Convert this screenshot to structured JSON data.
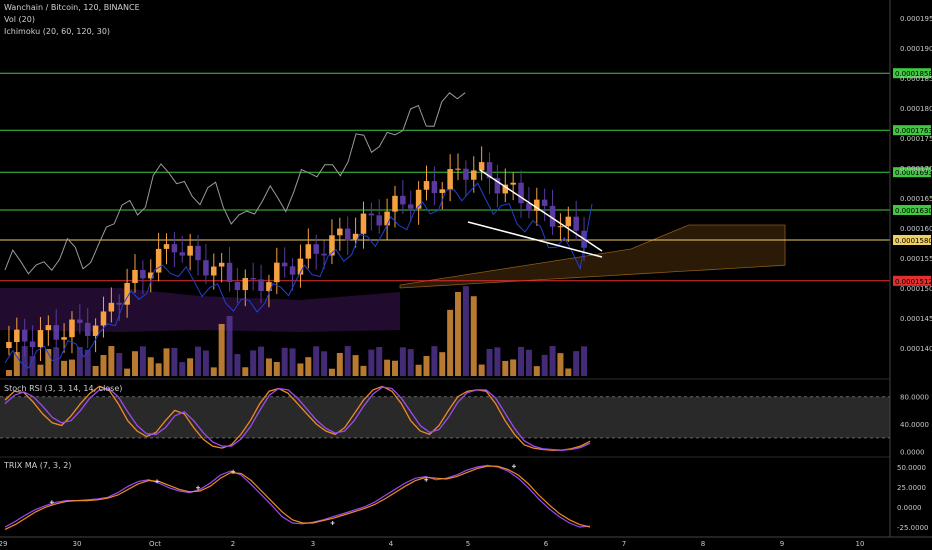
{
  "header": {
    "symbol_line": "Wanchain / Bitcoin, 120, BINANCE",
    "vol_label": "Vol (20)",
    "ichimoku_label": "Ichimoku (20, 60, 120, 30)"
  },
  "panes": {
    "stoch_label": "Stoch RSI (3, 3, 14, 14, close)",
    "trix_label": "TRIX MA (7, 3, 2)"
  },
  "colors": {
    "background": "#000000",
    "bull": "#f5a142",
    "bear": "#5b3a9e",
    "hline": "#3fc93f",
    "support": "#e23030",
    "current": "#f0d060",
    "cloud": "#7a4a10",
    "k_line": "#f08a24",
    "d_line": "#9a4cf0"
  },
  "chart_data": [
    {
      "type": "candlestick",
      "title": "Wanchain / Bitcoin, 120, BINANCE",
      "x_ticks": [
        "29",
        "30",
        "Oct",
        "2",
        "3",
        "4",
        "5",
        "6",
        "7",
        "8",
        "9",
        "10"
      ],
      "y_ticks": [
        "0.0001950",
        "0.0001900",
        "0.0001850",
        "0.0001800",
        "0.0001750",
        "0.0001700",
        "0.0001650",
        "0.0001600",
        "0.0001550",
        "0.0001500",
        "0.0001450",
        "0.0001400"
      ],
      "ylim": [
        0.000135,
        0.000198
      ],
      "horizontal_levels": [
        {
          "value": 0.0001858,
          "label": "0.0001858",
          "color": "#3fc93f"
        },
        {
          "value": 0.0001763,
          "label": "0.0001763",
          "color": "#3fc93f"
        },
        {
          "value": 0.0001693,
          "label": "0.0001693",
          "color": "#3fc93f"
        },
        {
          "value": 0.000163,
          "label": "0.0001630",
          "color": "#3fc93f"
        },
        {
          "value": 0.000158,
          "label": "0.0001580",
          "color": "#f0d060"
        },
        {
          "value": 0.0001512,
          "label": "0.0001512",
          "color": "#e23030"
        }
      ],
      "wedge": {
        "upper": [
          [
            "5 00:00",
            0.000171
          ],
          [
            "6 08:00",
            0.0001575
          ]
        ],
        "lower": [
          [
            "5 00:00",
            0.000161
          ],
          [
            "6 08:00",
            0.0001565
          ]
        ]
      },
      "candles_summary": {
        "start": 0.000143,
        "low": 0.0001405,
        "peak": 0.0001705,
        "end": 0.0001585
      },
      "volume_series": "Vol (20)"
    },
    {
      "type": "line",
      "title": "Stoch RSI (3, 3, 14, 14, close)",
      "y_ticks": [
        "80.0000",
        "40.0000",
        "0.0000"
      ],
      "ylim": [
        -5,
        100
      ],
      "band": [
        20,
        80
      ],
      "series": [
        {
          "name": "K",
          "values": [
            75,
            88,
            86,
            72,
            55,
            42,
            38,
            52,
            70,
            85,
            95,
            90,
            70,
            45,
            30,
            22,
            28,
            45,
            60,
            55,
            35,
            18,
            8,
            5,
            10,
            25,
            45,
            70,
            88,
            92,
            85,
            70,
            55,
            40,
            30,
            25,
            35,
            55,
            75,
            90,
            95,
            88,
            70,
            45,
            30,
            25,
            38,
            60,
            80,
            88,
            90,
            88,
            70,
            45,
            25,
            10,
            5,
            3,
            2,
            2,
            4,
            8,
            15
          ]
        },
        {
          "name": "D",
          "values": [
            70,
            82,
            87,
            80,
            66,
            50,
            42,
            45,
            60,
            78,
            90,
            92,
            80,
            58,
            38,
            26,
            25,
            35,
            52,
            58,
            45,
            28,
            14,
            8,
            8,
            18,
            36,
            60,
            82,
            92,
            90,
            78,
            62,
            46,
            34,
            27,
            30,
            45,
            66,
            84,
            94,
            92,
            78,
            58,
            38,
            28,
            32,
            50,
            72,
            86,
            90,
            90,
            78,
            56,
            34,
            16,
            8,
            4,
            3,
            2,
            3,
            6,
            12
          ]
        }
      ]
    },
    {
      "type": "line",
      "title": "TRIX MA (7, 3, 2)",
      "y_ticks": [
        "50.0000",
        "25.0000",
        "0.0000",
        "-25.0000"
      ],
      "ylim": [
        -35,
        60
      ],
      "series": [
        {
          "name": "TRIX",
          "values": [
            -25,
            -18,
            -10,
            -3,
            2,
            6,
            8,
            8,
            9,
            10,
            12,
            18,
            26,
            32,
            34,
            30,
            24,
            20,
            18,
            22,
            30,
            40,
            45,
            40,
            28,
            15,
            2,
            -12,
            -20,
            -21,
            -19,
            -16,
            -12,
            -8,
            -4,
            0,
            6,
            14,
            22,
            30,
            36,
            38,
            34,
            36,
            40,
            46,
            50,
            52,
            50,
            45,
            36,
            24,
            10,
            -2,
            -12,
            -20,
            -25,
            -24
          ]
        },
        {
          "name": "MA",
          "values": [
            -28,
            -22,
            -14,
            -6,
            0,
            4,
            7,
            8,
            8,
            9,
            11,
            15,
            22,
            29,
            33,
            32,
            27,
            22,
            19,
            20,
            26,
            36,
            43,
            42,
            33,
            20,
            7,
            -6,
            -16,
            -20,
            -20,
            -17,
            -14,
            -10,
            -6,
            -2,
            3,
            10,
            18,
            26,
            33,
            37,
            36,
            35,
            38,
            43,
            48,
            51,
            51,
            47,
            40,
            29,
            15,
            3,
            -8,
            -16,
            -22,
            -25
          ]
        }
      ]
    }
  ]
}
